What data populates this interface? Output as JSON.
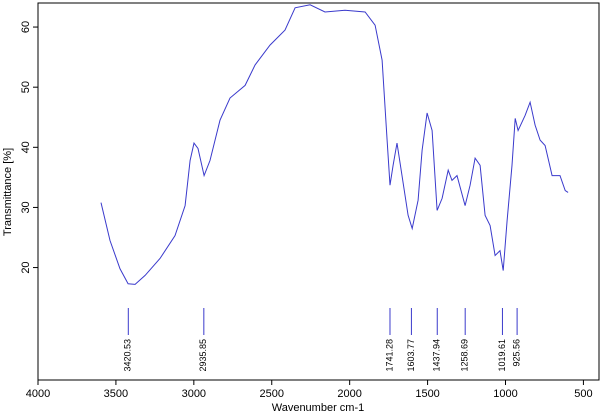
{
  "chart_data": {
    "type": "line",
    "x_label": "Wavenumber cm-1",
    "y_label": "Transmittance [%]",
    "color": "#3a3acc",
    "xlim": [
      4000,
      400
    ],
    "ylim": [
      1.3,
      64
    ],
    "xticks": [
      4000,
      3500,
      3000,
      2500,
      2000,
      1500,
      1000,
      500
    ],
    "yticks": [
      20,
      30,
      40,
      50,
      60
    ],
    "x": [
      3596,
      3538,
      3474,
      3422,
      3377,
      3313,
      3217,
      3121,
      3056,
      3024,
      2999,
      2973,
      2934,
      2896,
      2832,
      2768,
      2671,
      2607,
      2511,
      2415,
      2350,
      2254,
      2158,
      2030,
      1901,
      1837,
      1792,
      1760,
      1741,
      1721,
      1696,
      1664,
      1625,
      1599,
      1561,
      1535,
      1503,
      1471,
      1439,
      1407,
      1368,
      1343,
      1311,
      1259,
      1227,
      1195,
      1163,
      1131,
      1099,
      1067,
      1035,
      1015,
      990,
      958,
      938,
      919,
      874,
      842,
      810,
      778,
      746,
      701,
      650,
      617,
      598
    ],
    "values": [
      30.8,
      24.5,
      19.8,
      17.3,
      17.2,
      18.7,
      21.5,
      25.3,
      30.3,
      37.8,
      40.7,
      39.8,
      35.3,
      37.8,
      44.5,
      48.2,
      50.3,
      53.7,
      57,
      59.5,
      63.2,
      63.7,
      62.5,
      62.8,
      62.5,
      60.3,
      54.5,
      41.2,
      33.7,
      37,
      40.7,
      35.3,
      28.7,
      26.5,
      31.2,
      39.5,
      45.7,
      42.8,
      29.5,
      31.5,
      36.2,
      34.5,
      35.3,
      30.3,
      33.7,
      38.2,
      37,
      28.7,
      27,
      22,
      22.8,
      19.5,
      27.8,
      37,
      44.8,
      42.8,
      45.3,
      47.5,
      43.7,
      41.2,
      40.3,
      35.3,
      35.3,
      32.8,
      32.5
    ],
    "peaks": [
      3420.53,
      2935.85,
      1741.28,
      1603.77,
      1437.94,
      1258.69,
      1019.61,
      925.56
    ]
  }
}
